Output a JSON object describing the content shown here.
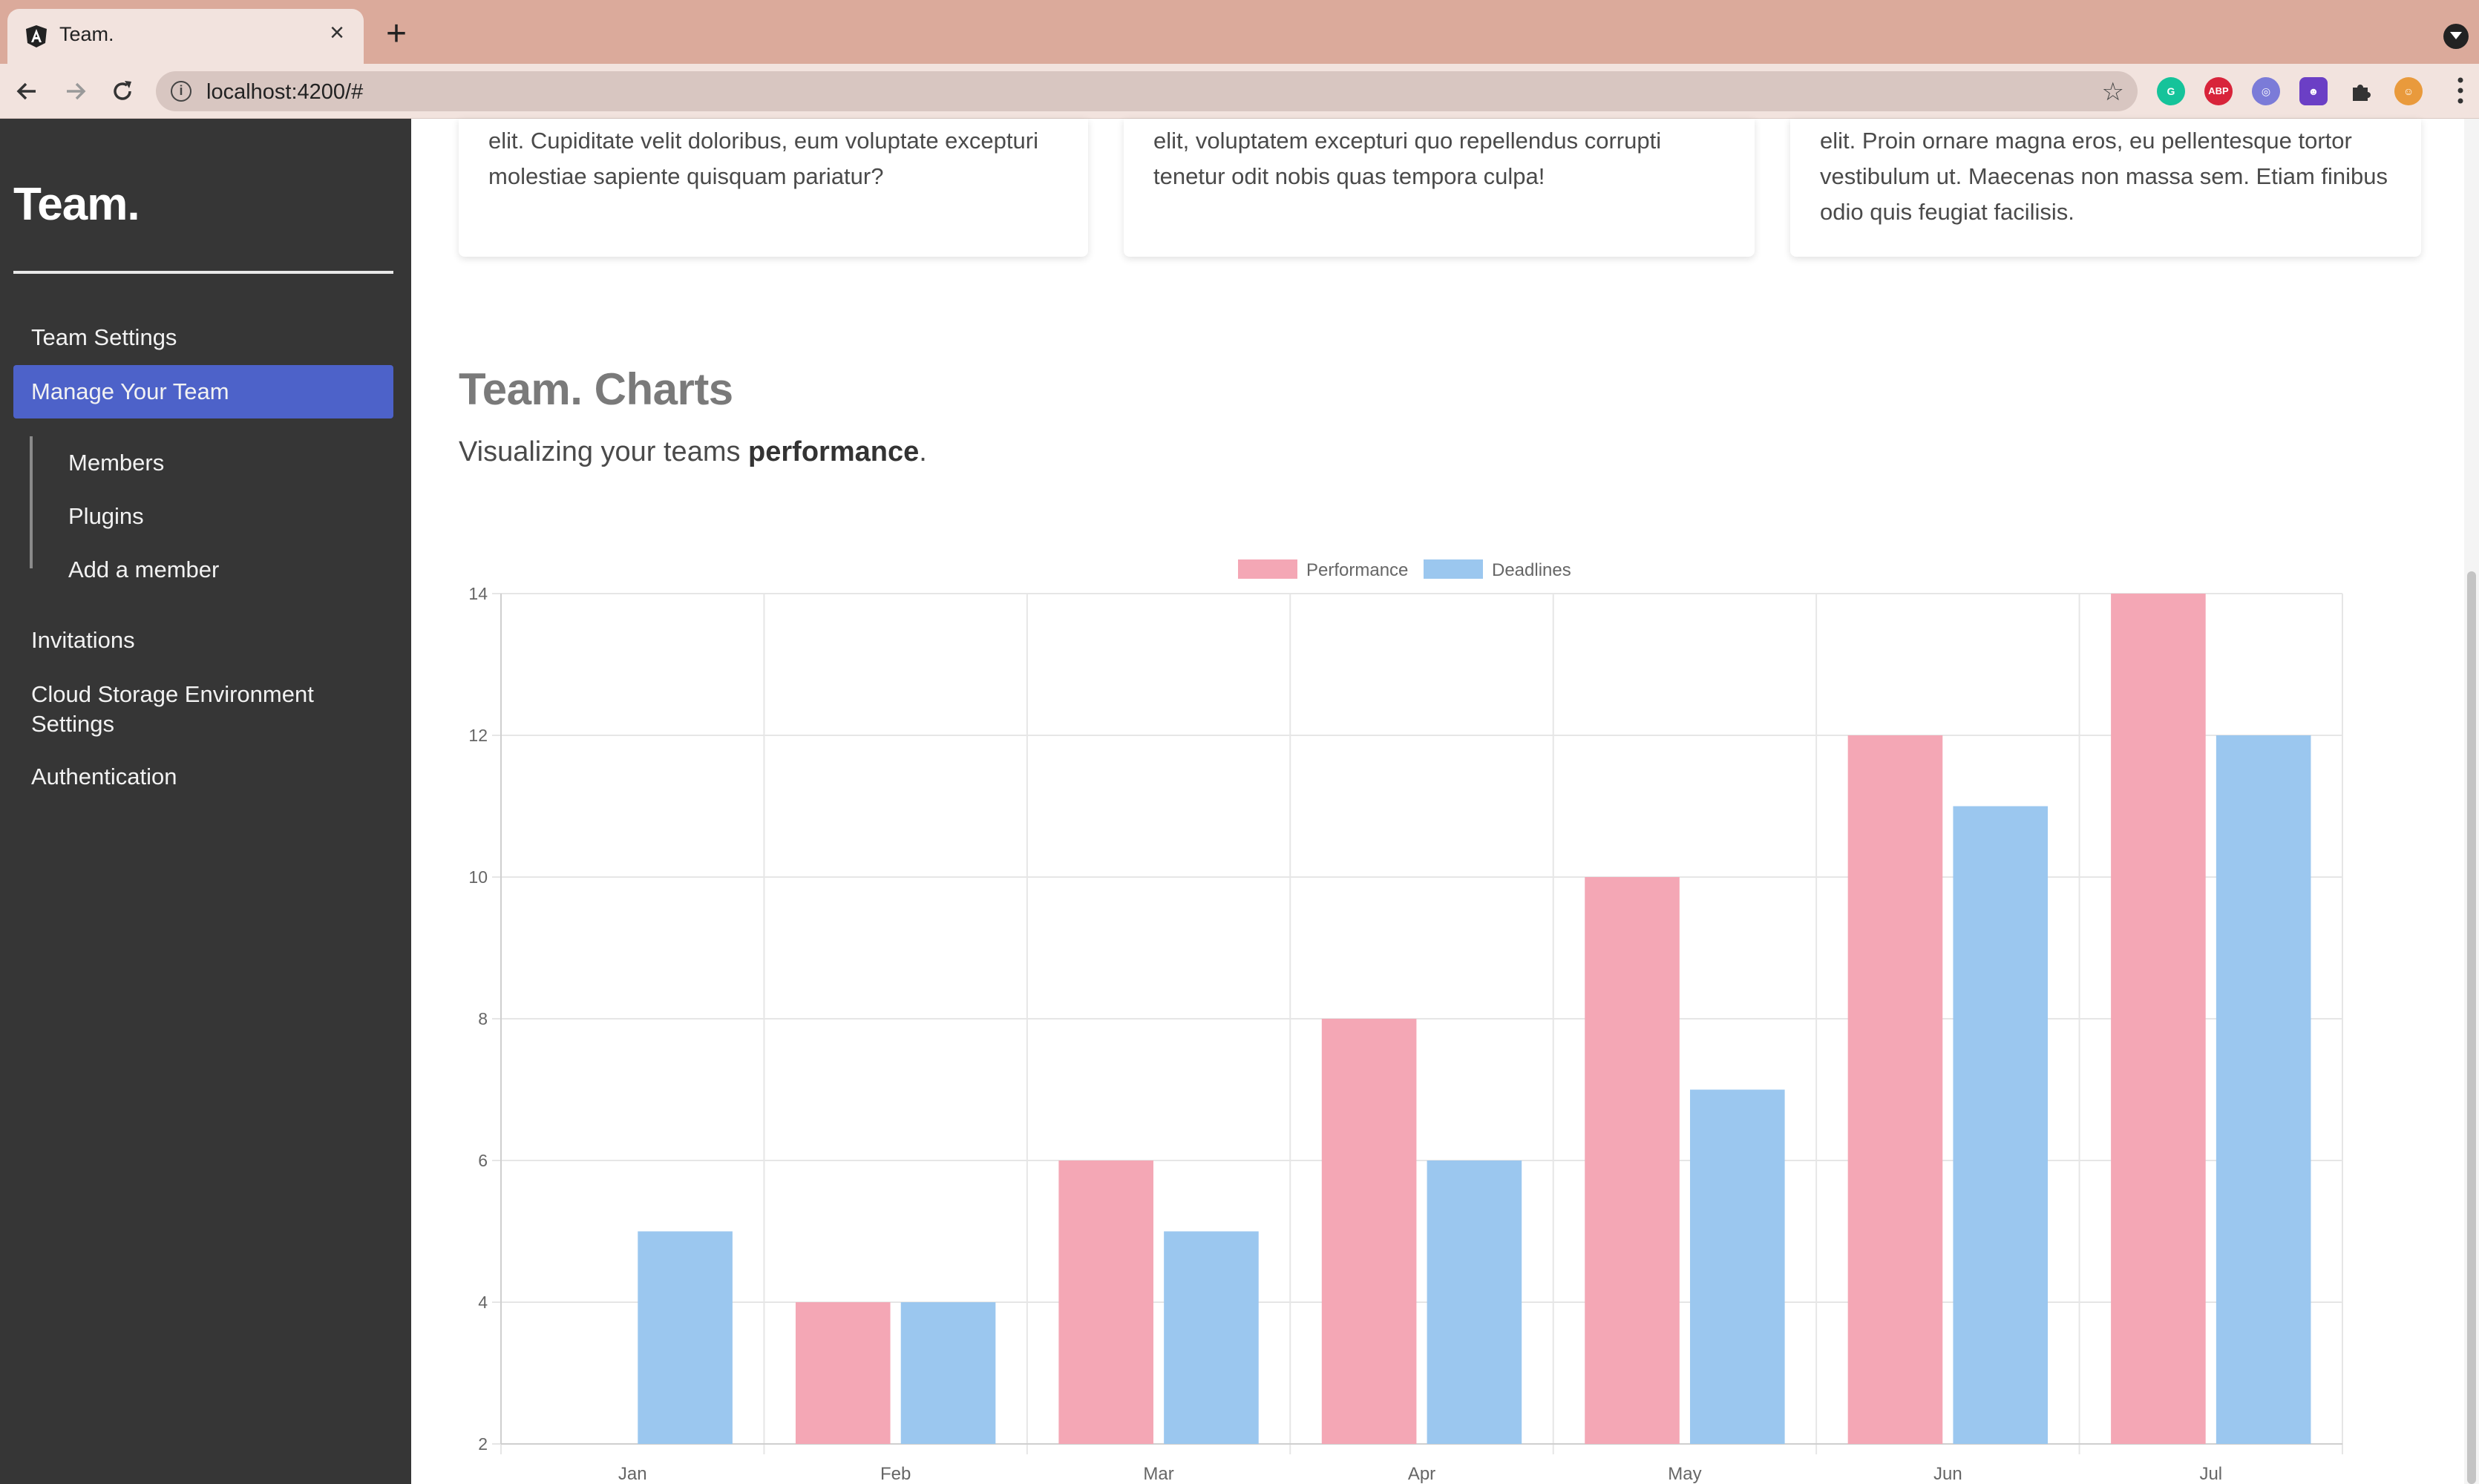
{
  "browser": {
    "tab_title": "Team.",
    "url": "localhost:4200/#"
  },
  "sidebar": {
    "brand": "Team.",
    "items": [
      {
        "label": "Team Settings"
      },
      {
        "label": "Manage Your Team",
        "active": true
      },
      {
        "label": "Invitations"
      },
      {
        "label": "Cloud Storage Environment Settings"
      },
      {
        "label": "Authentication"
      }
    ],
    "subitems": [
      {
        "label": "Members"
      },
      {
        "label": "Plugins"
      },
      {
        "label": "Add a member"
      }
    ]
  },
  "cards": [
    {
      "text": "elit. Cupiditate velit doloribus, eum voluptate excepturi molestiae sapiente quisquam pariatur?"
    },
    {
      "text": "elit, voluptatem excepturi quo repellendus corrupti tenetur odit nobis quas tempora culpa!"
    },
    {
      "text": "elit. Proin ornare magna eros, eu pellentesque tortor vestibulum ut. Maecenas non massa sem. Etiam finibus odio quis feugiat facilisis."
    }
  ],
  "section": {
    "title": "Team. Charts",
    "subtitle_prefix": "Visualizing your teams ",
    "subtitle_bold": "performance",
    "subtitle_suffix": "."
  },
  "colors": {
    "accent": "#4d62c9",
    "performance_fill": "#f4a7b5",
    "deadlines_fill": "#9bc7ef"
  },
  "chart_data": {
    "type": "bar",
    "categories": [
      "Jan",
      "Feb",
      "Mar",
      "Apr",
      "May",
      "Jun",
      "Jul"
    ],
    "series": [
      {
        "name": "Performance",
        "values": [
          2,
          4,
          6,
          8,
          10,
          12,
          14
        ],
        "color": "#f4a7b5"
      },
      {
        "name": "Deadlines",
        "values": [
          5,
          4,
          5,
          6,
          7,
          11,
          12
        ],
        "color": "#9bc7ef"
      }
    ],
    "ylim": [
      2,
      14
    ],
    "yticks": [
      2,
      4,
      6,
      8,
      10,
      12,
      14
    ],
    "grid": true,
    "legend": "top-center"
  }
}
